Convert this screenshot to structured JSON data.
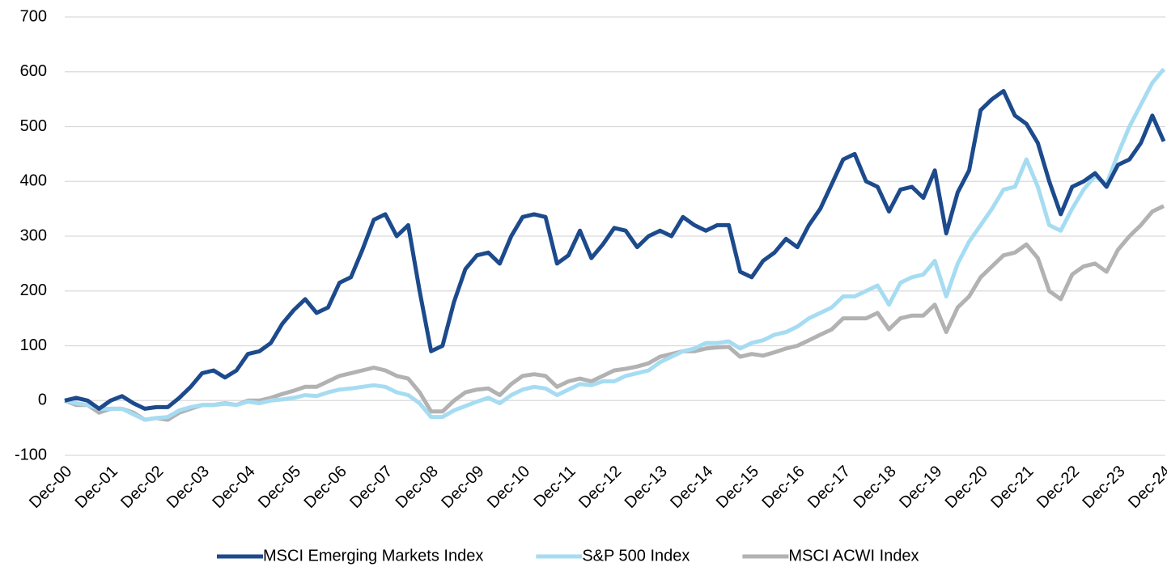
{
  "chart_data": {
    "type": "line",
    "categories": [
      "Dec-00",
      null,
      null,
      null,
      "Dec-01",
      null,
      null,
      null,
      "Dec-02",
      null,
      null,
      null,
      "Dec-03",
      null,
      null,
      null,
      "Dec-04",
      null,
      null,
      null,
      "Dec-05",
      null,
      null,
      null,
      "Dec-06",
      null,
      null,
      null,
      "Dec-07",
      null,
      null,
      null,
      "Dec-08",
      null,
      null,
      null,
      "Dec-09",
      null,
      null,
      null,
      "Dec-10",
      null,
      null,
      null,
      "Dec-11",
      null,
      null,
      null,
      "Dec-12",
      null,
      null,
      null,
      "Dec-13",
      null,
      null,
      null,
      "Dec-14",
      null,
      null,
      null,
      "Dec-15",
      null,
      null,
      null,
      "Dec-16",
      null,
      null,
      null,
      "Dec-17",
      null,
      null,
      null,
      "Dec-18",
      null,
      null,
      null,
      "Dec-19",
      null,
      null,
      null,
      "Dec-20",
      null,
      null,
      null,
      "Dec-21",
      null,
      null,
      null,
      "Dec-22",
      null,
      null,
      null,
      "Dec-23",
      null,
      null,
      null,
      "Dec-24"
    ],
    "series": [
      {
        "name": "MSCI Emerging Markets Index",
        "color": "#1c4a8c",
        "values": [
          0,
          5,
          0,
          -15,
          0,
          8,
          -5,
          -15,
          -12,
          -12,
          5,
          25,
          50,
          55,
          42,
          55,
          85,
          90,
          105,
          140,
          165,
          185,
          160,
          170,
          215,
          225,
          275,
          330,
          340,
          300,
          320,
          200,
          90,
          100,
          180,
          240,
          265,
          270,
          250,
          300,
          335,
          340,
          335,
          250,
          265,
          310,
          260,
          285,
          315,
          310,
          280,
          300,
          310,
          300,
          335,
          320,
          310,
          320,
          320,
          235,
          225,
          255,
          270,
          295,
          280,
          320,
          350,
          395,
          440,
          450,
          400,
          390,
          345,
          385,
          390,
          370,
          420,
          305,
          380,
          420,
          530,
          550,
          565,
          520,
          505,
          470,
          400,
          340,
          390,
          400,
          415,
          390,
          430,
          440,
          470,
          520,
          473
        ]
      },
      {
        "name": "S&P 500 Index",
        "color": "#a6dcf2",
        "values": [
          0,
          -5,
          -8,
          -15,
          -15,
          -15,
          -25,
          -35,
          -32,
          -30,
          -18,
          -12,
          -8,
          -8,
          -6,
          -8,
          -2,
          -5,
          0,
          2,
          5,
          10,
          8,
          15,
          20,
          22,
          25,
          28,
          25,
          15,
          10,
          -5,
          -30,
          -30,
          -18,
          -10,
          -2,
          5,
          -5,
          10,
          20,
          25,
          22,
          10,
          20,
          30,
          28,
          35,
          35,
          45,
          50,
          55,
          70,
          80,
          90,
          95,
          105,
          105,
          108,
          95,
          105,
          110,
          120,
          125,
          135,
          150,
          160,
          170,
          190,
          190,
          200,
          210,
          175,
          215,
          225,
          230,
          255,
          190,
          250,
          290,
          320,
          350,
          385,
          390,
          440,
          390,
          320,
          310,
          350,
          385,
          410,
          395,
          450,
          500,
          540,
          580,
          605
        ]
      },
      {
        "name": "MSCI ACWI Index",
        "color": "#b2b2b2",
        "values": [
          0,
          -8,
          -8,
          -22,
          -15,
          -15,
          -22,
          -35,
          -32,
          -35,
          -22,
          -15,
          -8,
          -8,
          -5,
          -8,
          0,
          0,
          5,
          12,
          18,
          25,
          25,
          35,
          45,
          50,
          55,
          60,
          55,
          45,
          40,
          15,
          -20,
          -20,
          0,
          15,
          20,
          22,
          10,
          30,
          45,
          48,
          45,
          25,
          35,
          40,
          35,
          45,
          55,
          58,
          62,
          68,
          80,
          85,
          90,
          90,
          95,
          97,
          98,
          80,
          85,
          82,
          88,
          95,
          100,
          110,
          120,
          130,
          150,
          150,
          150,
          160,
          130,
          150,
          155,
          155,
          175,
          125,
          170,
          190,
          225,
          245,
          265,
          270,
          285,
          260,
          200,
          185,
          230,
          245,
          250,
          235,
          275,
          300,
          320,
          345,
          355
        ]
      }
    ],
    "ylim": [
      -100,
      700
    ],
    "yticks": [
      -100,
      0,
      100,
      200,
      300,
      400,
      500,
      600,
      700
    ],
    "grid": true,
    "legend": "bottom"
  }
}
